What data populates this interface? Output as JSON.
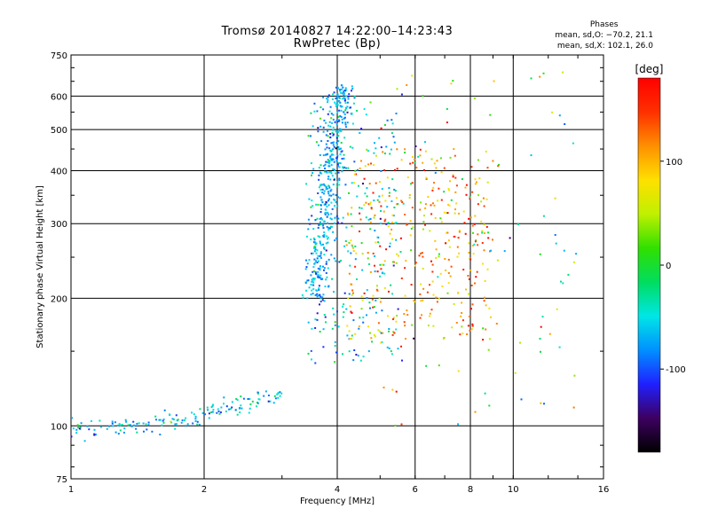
{
  "chart_data": {
    "type": "scatter",
    "title": "Tromsø 20140827 14:22:00–14:23:43",
    "subtitle": "RwPretec (Bp)",
    "xlabel": "Frequency [MHz]",
    "ylabel": "Stationary phase Virtual Height [km]",
    "x_scale": "log",
    "y_scale": "log",
    "xlim": [
      1,
      16
    ],
    "ylim": [
      75,
      750
    ],
    "x_ticks": [
      1,
      2,
      4,
      6,
      8,
      10,
      16
    ],
    "x_tick_labels": [
      "1",
      "2",
      "4",
      "6",
      "8",
      "10",
      "16"
    ],
    "y_ticks": [
      75,
      100,
      200,
      300,
      400,
      500,
      600,
      750
    ],
    "y_tick_labels": [
      "75",
      "100",
      "200",
      "300",
      "400",
      "500",
      "600",
      "750"
    ],
    "grid": true,
    "colorbar": {
      "label": "deg",
      "range": [
        -180,
        180
      ],
      "ticks": [
        100,
        0,
        -100
      ],
      "tick_labels": [
        "100",
        "0",
        "-100"
      ],
      "colors": [
        "#000000",
        "#3d0060",
        "#2020ff",
        "#0090ff",
        "#00e6e6",
        "#00dd60",
        "#30e000",
        "#c0f000",
        "#ffe000",
        "#ff9000",
        "#ff3000",
        "#ff0000"
      ]
    },
    "stats": {
      "title": "Phases",
      "line1": "mean, sd,O: −70.2, 21.1",
      "line2": "mean, sd,X: 102.1, 26.0"
    },
    "clusters": [
      {
        "name": "low_o_trace",
        "f": [
          1.0,
          3.0
        ],
        "h": [
          98,
          120
        ],
        "n": 160,
        "phase_mean": -60,
        "phase_sd": 30
      },
      {
        "name": "f_o_trace_steep",
        "f": [
          3.4,
          4.3
        ],
        "h": [
          200,
          640
        ],
        "n": 420,
        "phase_mean": -70,
        "phase_sd": 20
      },
      {
        "name": "f_o_spread",
        "f": [
          3.4,
          5.5
        ],
        "h": [
          140,
          600
        ],
        "n": 260,
        "phase_mean": -60,
        "phase_sd": 40
      },
      {
        "name": "x_mode_spread",
        "f": [
          4.2,
          9.0
        ],
        "h": [
          160,
          450
        ],
        "n": 360,
        "phase_mean": 100,
        "phase_sd": 45
      },
      {
        "name": "mixed_high",
        "f": [
          5.0,
          14.0
        ],
        "h": [
          100,
          700
        ],
        "n": 110,
        "phase_mean": 40,
        "phase_sd": 90
      }
    ]
  }
}
